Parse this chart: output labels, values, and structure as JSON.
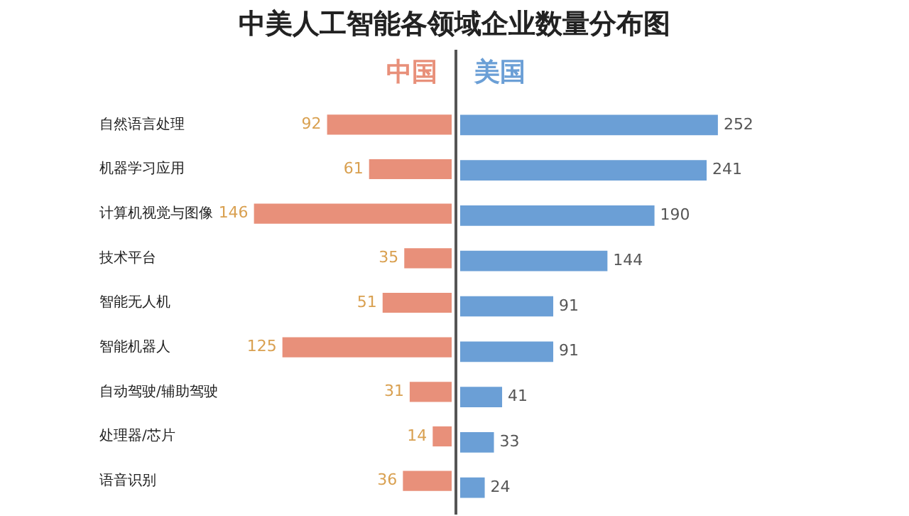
{
  "chart_data": [
    {
      "type": "bar",
      "orientation": "horizontal",
      "title": "中美人工智能各领域企业数量分布图",
      "categories": [
        "自然语言处理",
        "机器学习应用",
        "计算机视觉与图像",
        "技术平台",
        "智能无人机",
        "智能机器人",
        "自动驾驶/辅助驾驶",
        "处理器/芯片",
        "语音识别"
      ],
      "series": [
        {
          "name": "中国",
          "color": "#e8907a",
          "values": [
            92,
            61,
            146,
            35,
            51,
            125,
            31,
            14,
            36
          ]
        }
      ],
      "tick_labels": "y",
      "data_labels": true
    },
    {
      "type": "bar",
      "orientation": "horizontal",
      "categories": [
        null,
        null,
        null,
        null,
        null,
        null,
        null,
        null,
        null
      ],
      "series": [
        {
          "name": "美国",
          "color": "#6b9fd6",
          "values": [
            252,
            241,
            190,
            144,
            91,
            91,
            41,
            33,
            24
          ]
        }
      ],
      "tick_labels": false,
      "data_labels": true
    }
  ]
}
